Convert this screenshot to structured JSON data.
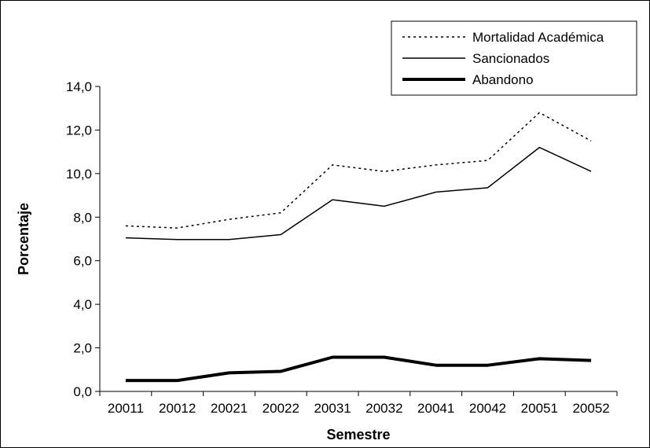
{
  "chart_data": {
    "type": "line",
    "title": "",
    "xlabel": "Semestre",
    "ylabel": "Porcentaje",
    "categories": [
      "20011",
      "20012",
      "20021",
      "20022",
      "20031",
      "20032",
      "20041",
      "20042",
      "20051",
      "20052"
    ],
    "ylim": [
      0,
      14
    ],
    "y_ticks": [
      "0,0",
      "2,0",
      "4,0",
      "6,0",
      "8,0",
      "10,0",
      "12,0",
      "14,0"
    ],
    "grid": false,
    "legend_position": "top-right",
    "series": [
      {
        "name": "Mortalidad Académica",
        "style": "dotted",
        "values": [
          7.6,
          7.5,
          7.9,
          8.2,
          10.4,
          10.1,
          10.4,
          10.6,
          12.8,
          11.5
        ]
      },
      {
        "name": "Sancionados",
        "style": "thin",
        "values": [
          7.05,
          6.97,
          6.97,
          7.2,
          8.8,
          8.5,
          9.15,
          9.35,
          11.2,
          10.1
        ]
      },
      {
        "name": "Abandono",
        "style": "thick",
        "values": [
          0.5,
          0.5,
          0.85,
          0.92,
          1.57,
          1.57,
          1.2,
          1.2,
          1.5,
          1.42
        ]
      }
    ]
  }
}
